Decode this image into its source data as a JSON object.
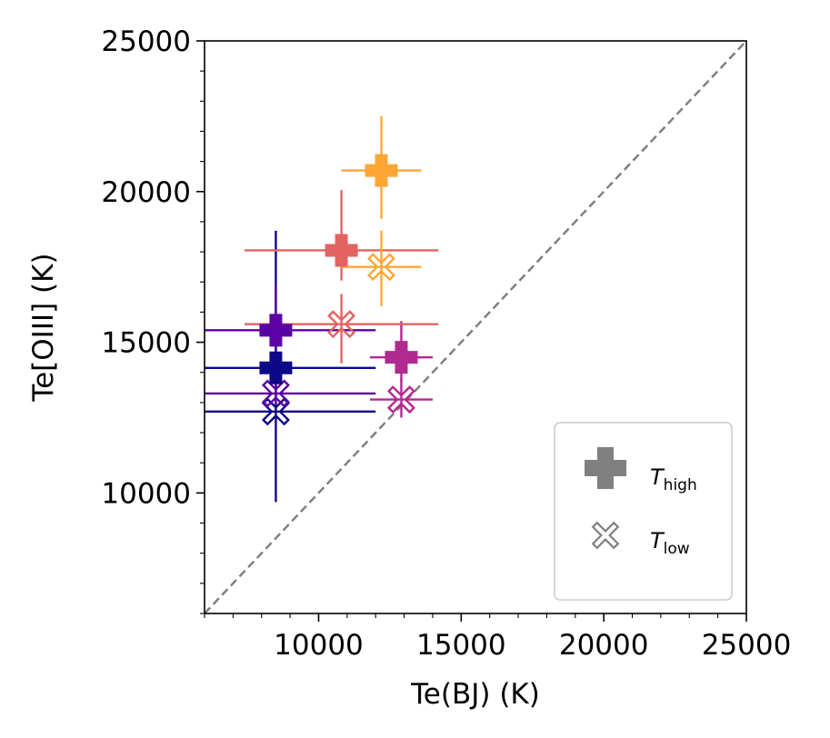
{
  "chart_data": {
    "type": "scatter",
    "title": "",
    "xlabel": "Te(BJ) (K)",
    "ylabel": "Te[OIII] (K)",
    "xlim": [
      6000,
      25000
    ],
    "ylim": [
      6000,
      25000
    ],
    "xticks": [
      10000,
      15000,
      20000,
      25000
    ],
    "yticks": [
      10000,
      15000,
      20000,
      25000
    ],
    "x_tick_labels": [
      "10000",
      "15000",
      "20000",
      "25000"
    ],
    "y_tick_labels": [
      "10000",
      "15000",
      "20000",
      "25000"
    ],
    "grid": false,
    "reference_line": {
      "type": "y=x",
      "style": "dashed",
      "color": "#808080"
    },
    "legend": {
      "placement": "lower-right",
      "entries": [
        {
          "marker": "filled-cross",
          "label_main": "T",
          "label_sub": "high"
        },
        {
          "marker": "open-x",
          "label_main": "T",
          "label_sub": "low"
        }
      ]
    },
    "series": [
      {
        "color": "#0d0887",
        "high": {
          "x": 8500,
          "y": 14150,
          "xerr": [
            2600,
            3500
          ],
          "yerr": [
            500,
            700
          ]
        },
        "low": {
          "x": 8500,
          "y": 12700,
          "xerr": [
            2600,
            3500
          ],
          "yerr": [
            3000,
            6000
          ]
        }
      },
      {
        "color": "#5b02a3",
        "high": {
          "x": 8500,
          "y": 15400,
          "xerr": [
            2600,
            3500
          ],
          "yerr": [
            1400,
            1500
          ]
        },
        "low": {
          "x": 8500,
          "y": 13300,
          "xerr": [
            2600,
            3500
          ],
          "yerr": [
            450,
            450
          ]
        }
      },
      {
        "color": "#b12a90",
        "high": {
          "x": 12900,
          "y": 14500,
          "xerr": [
            1100,
            1100
          ],
          "yerr": [
            800,
            1200
          ]
        },
        "low": {
          "x": 12900,
          "y": 13100,
          "xerr": [
            1100,
            1100
          ],
          "yerr": [
            600,
            700
          ]
        }
      },
      {
        "color": "#e16462",
        "high": {
          "x": 10800,
          "y": 18050,
          "xerr": [
            3400,
            3400
          ],
          "yerr": [
            1000,
            2000
          ]
        },
        "low": {
          "x": 10800,
          "y": 15600,
          "xerr": [
            3400,
            3400
          ],
          "yerr": [
            1300,
            1000
          ]
        }
      },
      {
        "color": "#fca636",
        "high": {
          "x": 12200,
          "y": 20700,
          "xerr": [
            1400,
            1400
          ],
          "yerr": [
            1600,
            1800
          ]
        },
        "low": {
          "x": 12200,
          "y": 17500,
          "xerr": [
            1400,
            1400
          ],
          "yerr": [
            1300,
            1200
          ]
        }
      }
    ]
  }
}
